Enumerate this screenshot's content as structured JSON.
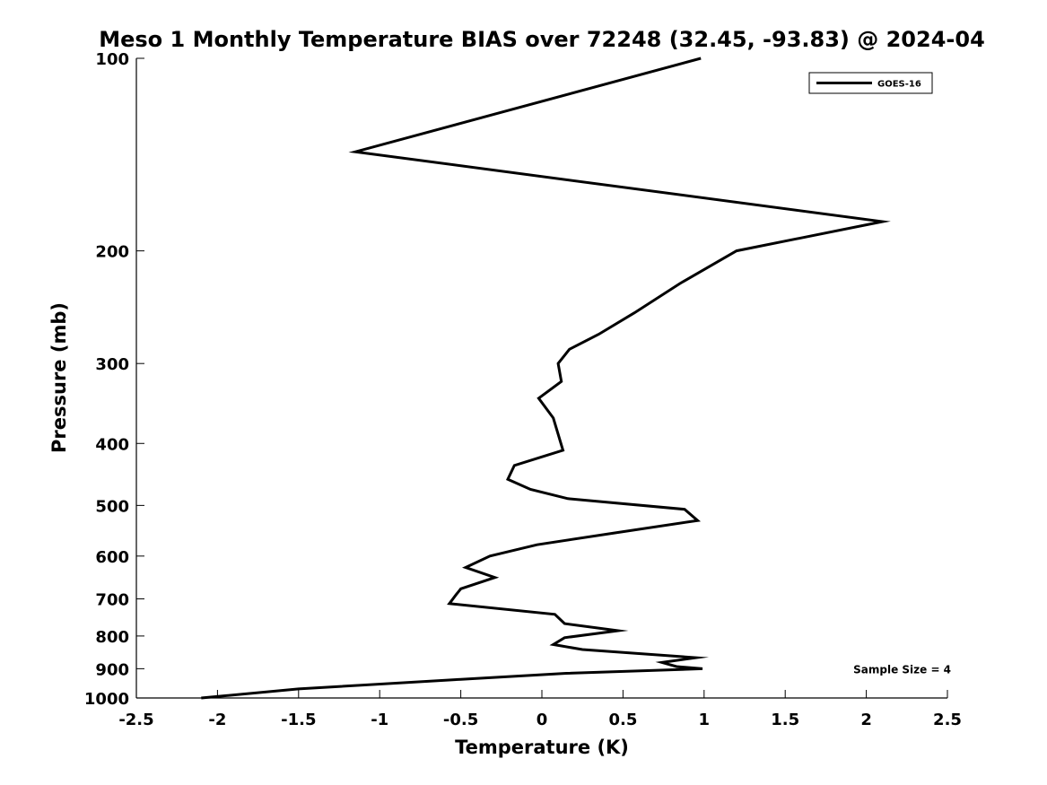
{
  "chart_data": {
    "type": "line",
    "title": "Meso 1 Monthly Temperature BIAS over 72248 (32.45, -93.83) @ 2024-04",
    "xlabel": "Temperature (K)",
    "ylabel": "Pressure (mb)",
    "xlim": [
      -2.5,
      2.5
    ],
    "ylim": [
      1000,
      100
    ],
    "y_scale": "log",
    "y_reversed": true,
    "grid": false,
    "legend_position": "top-right",
    "x_ticks": [
      -2.5,
      -2,
      -1.5,
      -1,
      -0.5,
      0,
      0.5,
      1,
      1.5,
      2,
      2.5
    ],
    "x_tick_labels": [
      "-2.5",
      "-2",
      "-1.5",
      "-1",
      "-0.5",
      "0",
      "0.5",
      "1",
      "1.5",
      "2",
      "2.5"
    ],
    "y_ticks": [
      100,
      200,
      300,
      400,
      500,
      600,
      700,
      800,
      900,
      1000
    ],
    "y_tick_labels": [
      "100",
      "200",
      "300",
      "400",
      "500",
      "600",
      "700",
      "800",
      "900",
      "1000"
    ],
    "series": [
      {
        "name": "GOES-16",
        "color": "#000000",
        "points": [
          {
            "x": 0.98,
            "y": 100
          },
          {
            "x": -1.15,
            "y": 140
          },
          {
            "x": 2.1,
            "y": 180
          },
          {
            "x": 1.2,
            "y": 200
          },
          {
            "x": 0.85,
            "y": 225
          },
          {
            "x": 0.57,
            "y": 250
          },
          {
            "x": 0.35,
            "y": 270
          },
          {
            "x": 0.17,
            "y": 285
          },
          {
            "x": 0.1,
            "y": 300
          },
          {
            "x": 0.12,
            "y": 320
          },
          {
            "x": -0.02,
            "y": 340
          },
          {
            "x": 0.07,
            "y": 365
          },
          {
            "x": 0.13,
            "y": 410
          },
          {
            "x": -0.17,
            "y": 433
          },
          {
            "x": -0.21,
            "y": 455
          },
          {
            "x": -0.07,
            "y": 472
          },
          {
            "x": 0.16,
            "y": 488
          },
          {
            "x": 0.88,
            "y": 507
          },
          {
            "x": 0.96,
            "y": 528
          },
          {
            "x": 0.45,
            "y": 552
          },
          {
            "x": -0.03,
            "y": 576
          },
          {
            "x": -0.32,
            "y": 600
          },
          {
            "x": -0.47,
            "y": 625
          },
          {
            "x": -0.29,
            "y": 648
          },
          {
            "x": -0.5,
            "y": 675
          },
          {
            "x": -0.53,
            "y": 690
          },
          {
            "x": -0.57,
            "y": 712
          },
          {
            "x": 0.08,
            "y": 740
          },
          {
            "x": 0.14,
            "y": 765
          },
          {
            "x": 0.47,
            "y": 785
          },
          {
            "x": 0.14,
            "y": 805
          },
          {
            "x": 0.07,
            "y": 825
          },
          {
            "x": 0.25,
            "y": 840
          },
          {
            "x": 0.95,
            "y": 865
          },
          {
            "x": 0.74,
            "y": 880
          },
          {
            "x": 0.83,
            "y": 893
          },
          {
            "x": 0.99,
            "y": 900
          },
          {
            "x": 0.15,
            "y": 915
          },
          {
            "x": -0.5,
            "y": 935
          },
          {
            "x": -1.5,
            "y": 968
          },
          {
            "x": -2.1,
            "y": 1000
          }
        ]
      }
    ],
    "annotations": [
      {
        "text": "Sample Size = 4",
        "x": 1.92,
        "y": 900
      }
    ]
  }
}
